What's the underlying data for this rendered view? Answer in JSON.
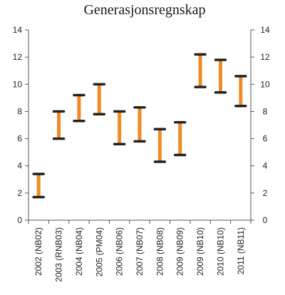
{
  "chart_data": {
    "type": "range-bar",
    "title": "Generasjonsregnskap",
    "xlabel": "",
    "ylabel": "",
    "ylim": [
      0,
      14
    ],
    "yticks": [
      0,
      2,
      4,
      6,
      8,
      10,
      12,
      14
    ],
    "secondary_y_axis": true,
    "grid": false,
    "legend": "none",
    "colors": {
      "bar": "#f08a24",
      "cap": "#222222"
    },
    "categories": [
      "2002 (NB02)",
      "2003 (RNB03)",
      "2004 (NB04)",
      "2005 (PM04)",
      "2006 (NB06)",
      "2007 (NB07)",
      "2008 (NB08)",
      "2009 (NB09)",
      "2009 (NB10)",
      "2010 (NB10)",
      "2011 (NB11)"
    ],
    "series": [
      {
        "name": "",
        "low": [
          1.7,
          6.0,
          7.3,
          7.8,
          5.6,
          5.8,
          4.3,
          4.8,
          9.8,
          9.4,
          8.4
        ],
        "high": [
          3.4,
          8.0,
          9.2,
          10.0,
          8.0,
          8.3,
          6.7,
          7.2,
          12.2,
          11.8,
          10.6
        ]
      }
    ]
  }
}
